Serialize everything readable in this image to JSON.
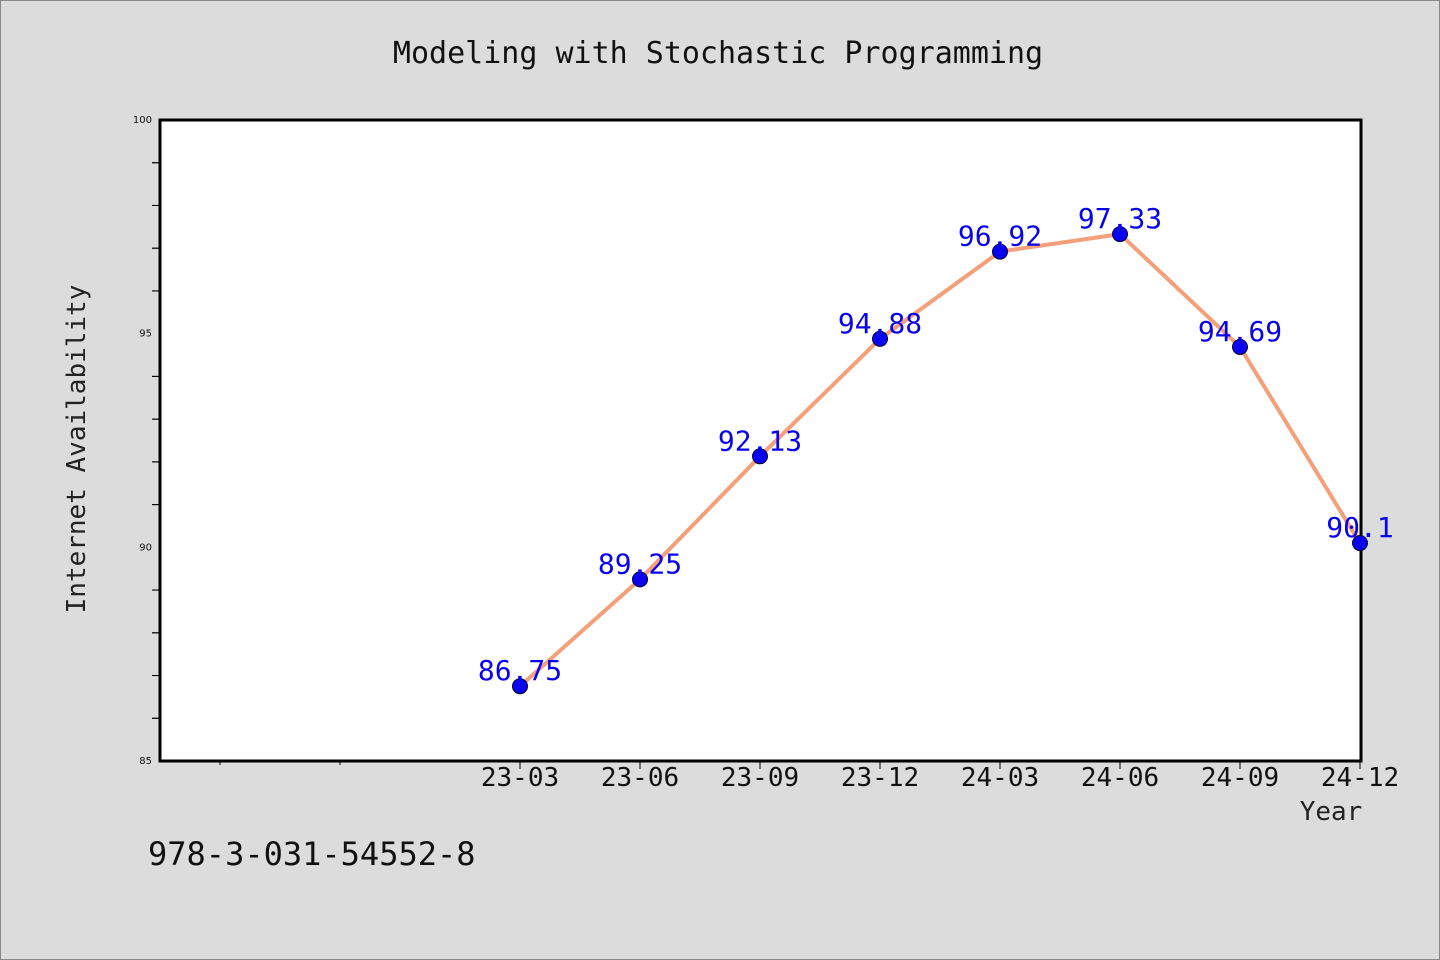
{
  "chart_data": {
    "type": "line",
    "title": "Modeling with Stochastic Programming",
    "xlabel": "Year",
    "ylabel": "Internet Availability",
    "categories": [
      "23-03",
      "23-06",
      "23-09",
      "23-12",
      "24-03",
      "24-06",
      "24-09",
      "24-12"
    ],
    "series": [
      {
        "values": [
          86.75,
          89.25,
          92.13,
          94.88,
          96.92,
          97.33,
          94.69,
          90.1
        ],
        "labels": [
          "86.75",
          "89.25",
          "92.13",
          "94.88",
          "96.92",
          "97.33",
          "94.69",
          "90.1"
        ]
      }
    ],
    "ylim": [
      85,
      100
    ],
    "yticks": [
      "85",
      "90",
      "95",
      "100"
    ],
    "grid": false,
    "legend": "none"
  },
  "footer": {
    "isbn": "978-3-031-54552-8"
  },
  "colors": {
    "line": "#f4a07a",
    "marker": "#0a00f0",
    "data_label": "#0a00f0",
    "plot_background": "#ffffff",
    "page_background": "#dcdcdc"
  }
}
